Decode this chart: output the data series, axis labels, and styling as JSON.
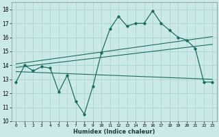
{
  "xlabel": "Humidex (Indice chaleur)",
  "bg_color": "#cce9e9",
  "grid_color": "#aad4d4",
  "line_color": "#1a6b5e",
  "xlim": [
    -0.5,
    23.5
  ],
  "ylim": [
    10,
    18.5
  ],
  "yticks": [
    10,
    11,
    12,
    13,
    14,
    15,
    16,
    17,
    18
  ],
  "xticks": [
    0,
    1,
    2,
    3,
    4,
    5,
    6,
    7,
    8,
    9,
    10,
    11,
    12,
    13,
    14,
    15,
    16,
    17,
    18,
    19,
    20,
    21,
    22,
    23
  ],
  "main_line_x": [
    0,
    1,
    2,
    3,
    4,
    5,
    6,
    7,
    8,
    9,
    10,
    11,
    12,
    13,
    14,
    15,
    16,
    17,
    18,
    19,
    20,
    21,
    22,
    23
  ],
  "main_line_y": [
    12.8,
    14.0,
    13.6,
    13.9,
    13.8,
    12.1,
    13.3,
    11.4,
    10.5,
    12.5,
    14.9,
    16.6,
    17.5,
    16.8,
    17.0,
    17.0,
    17.9,
    17.0,
    16.5,
    16.0,
    15.8,
    15.2,
    12.8,
    12.8
  ],
  "upper_line_x": [
    0,
    23
  ],
  "upper_line_y": [
    14.1,
    16.05
  ],
  "middle_line_x": [
    0,
    23
  ],
  "middle_line_y": [
    13.85,
    15.5
  ],
  "lower_line_x": [
    0,
    23
  ],
  "lower_line_y": [
    13.55,
    13.0
  ]
}
